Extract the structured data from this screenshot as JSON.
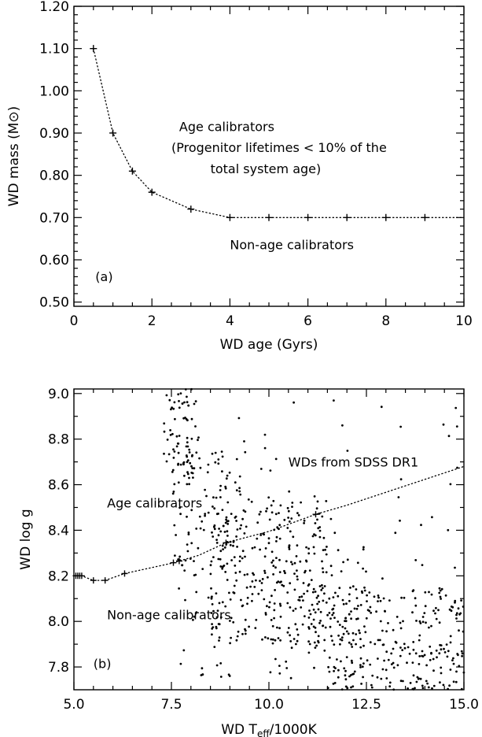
{
  "chart_data": [
    {
      "id": "a",
      "type": "line",
      "panel_label": "(a)",
      "xlabel": "WD age (Gyrs)",
      "ylabel": "WD mass (M⊙)",
      "xlim": [
        0,
        10
      ],
      "ylim": [
        0.49,
        1.2
      ],
      "xticks": [
        0,
        2,
        4,
        6,
        8,
        10
      ],
      "xtick_labels": [
        "0",
        "2",
        "4",
        "6",
        "8",
        "10"
      ],
      "yticks": [
        0.5,
        0.6,
        0.7,
        0.8,
        0.9,
        1.0,
        1.1,
        1.2
      ],
      "ytick_labels": [
        "0.50",
        "0.60",
        "0.70",
        "0.80",
        "0.90",
        "1.00",
        "1.10",
        "1.20"
      ],
      "series": [
        {
          "style": "dotted line with + markers",
          "x": [
            0.5,
            1,
            1.5,
            2,
            3,
            4,
            5,
            6,
            7,
            8,
            9,
            10
          ],
          "y": [
            1.1,
            0.9,
            0.81,
            0.76,
            0.72,
            0.7,
            0.7,
            0.7,
            0.7,
            0.7,
            0.7,
            0.7
          ],
          "marker_x": [
            0.5,
            1,
            1.5,
            2,
            3,
            4,
            5,
            6,
            7,
            8,
            9
          ]
        }
      ],
      "annotations": [
        {
          "text": "Age calibrators",
          "x": 2.7,
          "y": 0.905
        },
        {
          "text": "(Progenitor lifetimes < 10% of the",
          "x": 2.5,
          "y": 0.855
        },
        {
          "text": "total system age)",
          "x": 3.5,
          "y": 0.805
        },
        {
          "text": "Non-age calibrators",
          "x": 4.0,
          "y": 0.625
        }
      ],
      "grid": false
    },
    {
      "id": "b",
      "type": "scatter",
      "panel_label": "(b)",
      "xlabel_main": "WD T",
      "xlabel_sub": "eff",
      "xlabel_tail": "/1000K",
      "ylabel": "WD log g",
      "xlim": [
        5.0,
        15.0
      ],
      "ylim": [
        7.7,
        9.02
      ],
      "xticks": [
        5.0,
        7.5,
        10.0,
        12.5,
        15.0
      ],
      "xtick_labels": [
        "5.0",
        "7.5",
        "10.0",
        "12.5",
        "15.0"
      ],
      "yticks": [
        7.8,
        8.0,
        8.2,
        8.4,
        8.6,
        8.8,
        9.0
      ],
      "ytick_labels": [
        "7.8",
        "8.0",
        "8.2",
        "8.4",
        "8.6",
        "8.8",
        "9.0"
      ],
      "boundary": {
        "style": "dotted line with + markers",
        "x": [
          5.0,
          5.1,
          5.2,
          5.5,
          5.8,
          6.3,
          7.5,
          7.7,
          8.2,
          8.9,
          10.0,
          11.2,
          12.0,
          15.0
        ],
        "y": [
          8.2,
          8.2,
          8.2,
          8.18,
          8.18,
          8.21,
          8.255,
          8.265,
          8.29,
          8.345,
          8.395,
          8.47,
          8.51,
          8.68
        ],
        "marker_x": [
          5.05,
          5.1,
          5.15,
          5.2,
          5.5,
          5.8,
          6.3,
          7.55,
          7.7,
          8.9,
          11.2
        ]
      },
      "scatter_regions": [
        {
          "x": [
            7.3,
            8.2
          ],
          "y": [
            8.6,
            9.02
          ],
          "n": 70
        },
        {
          "x": [
            7.5,
            9.3
          ],
          "y": [
            8.2,
            8.75
          ],
          "n": 110
        },
        {
          "x": [
            8.5,
            11.5
          ],
          "y": [
            7.9,
            8.55
          ],
          "n": 260
        },
        {
          "x": [
            10.0,
            12.5
          ],
          "y": [
            7.75,
            8.35
          ],
          "n": 110
        },
        {
          "x": [
            11.5,
            15.0
          ],
          "y": [
            7.7,
            8.15
          ],
          "n": 260
        },
        {
          "x": [
            9.0,
            15.0
          ],
          "y": [
            8.15,
            9.0
          ],
          "n": 45
        },
        {
          "x": [
            7.6,
            9.5
          ],
          "y": [
            7.75,
            8.15
          ],
          "n": 30
        }
      ],
      "annotations": [
        {
          "text": "WDs from SDSS DR1",
          "x": 10.5,
          "y": 8.68
        },
        {
          "text": "Age calibrators",
          "x": 5.85,
          "y": 8.5
        },
        {
          "text": "Non-age calibrators",
          "x": 5.85,
          "y": 8.01
        }
      ],
      "grid": false
    }
  ]
}
